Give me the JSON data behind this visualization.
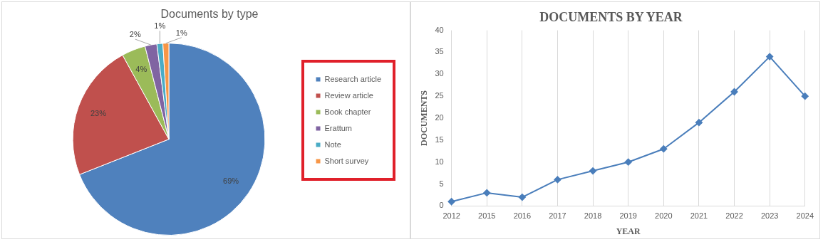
{
  "chart_data": [
    {
      "type": "pie",
      "title": "Documents by type",
      "categories": [
        "Research article",
        "Review article",
        "Book chapter",
        "Erattum",
        "Note",
        "Short survey"
      ],
      "values": [
        69,
        23,
        4,
        2,
        1,
        1
      ],
      "colors": [
        "#4f81bd",
        "#c0504d",
        "#9bbb59",
        "#8064a2",
        "#4bacc6",
        "#f79646"
      ],
      "value_labels": [
        "69%",
        "23%",
        "4%",
        "2%",
        "1%",
        "1%"
      ],
      "legend": "right"
    },
    {
      "type": "line",
      "title": "DOCUMENTS BY YEAR",
      "xlabel": "YEAR",
      "ylabel": "DOCUMENTS",
      "categories": [
        "2012",
        "2015",
        "2016",
        "2017",
        "2018",
        "2019",
        "2020",
        "2021",
        "2022",
        "2023",
        "2024"
      ],
      "series": [
        {
          "color": "#4a7ebb",
          "values": [
            1,
            3,
            2,
            6,
            8,
            10,
            13,
            19,
            26,
            34,
            25
          ]
        }
      ],
      "ylim": [
        0,
        40
      ],
      "yticks": [
        0,
        5,
        10,
        15,
        20,
        25,
        30,
        35,
        40
      ],
      "grid": "x",
      "marker": "diamond"
    }
  ]
}
